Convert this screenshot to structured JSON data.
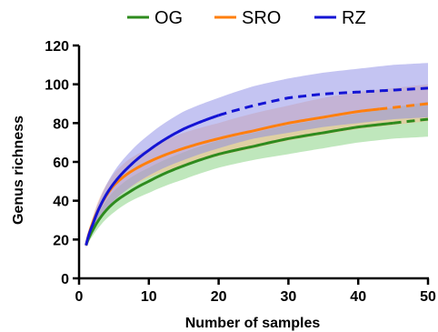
{
  "chart_data": {
    "type": "line",
    "xlabel": "Number of samples",
    "ylabel": "Genus richness",
    "xlim": [
      0,
      50
    ],
    "ylim": [
      0,
      120
    ],
    "xticks": [
      0,
      10,
      20,
      30,
      40,
      50
    ],
    "yticks": [
      0,
      20,
      40,
      60,
      80,
      100,
      120
    ],
    "grid": false,
    "legend_position": "top",
    "series": [
      {
        "name": "OG",
        "color": "#2e8b1e",
        "band_color": "#7fd07a",
        "x": [
          1,
          2,
          3,
          5,
          7,
          10,
          15,
          20,
          25,
          30,
          35,
          40,
          45,
          50
        ],
        "y": [
          17,
          25,
          31,
          39,
          44,
          50,
          58,
          64,
          68,
          72,
          75,
          78,
          80,
          82
        ],
        "lower": [
          16,
          22,
          27,
          34,
          39,
          44,
          51,
          57,
          61,
          64,
          67,
          70,
          72,
          73
        ],
        "upper": [
          18,
          28,
          35,
          45,
          51,
          57,
          65,
          71,
          75,
          79,
          82,
          85,
          88,
          91
        ],
        "observed_until": 45
      },
      {
        "name": "SRO",
        "color": "#ff7f0e",
        "band_color": "#ffb98a",
        "x": [
          1,
          2,
          3,
          5,
          7,
          10,
          15,
          20,
          25,
          30,
          35,
          40,
          45,
          50
        ],
        "y": [
          17,
          29,
          37,
          48,
          54,
          60,
          67,
          72,
          76,
          80,
          83,
          86,
          88,
          90
        ],
        "lower": [
          16,
          25,
          31,
          40,
          46,
          52,
          58,
          63,
          67,
          71,
          74,
          77,
          79,
          81
        ],
        "upper": [
          18,
          32,
          42,
          54,
          61,
          67,
          75,
          80,
          85,
          89,
          93,
          96,
          98,
          100
        ],
        "observed_until": 43
      },
      {
        "name": "RZ",
        "color": "#1414d4",
        "band_color": "#8a8ae6",
        "x": [
          1,
          2,
          3,
          5,
          7,
          10,
          15,
          20,
          25,
          30,
          35,
          40,
          45,
          50
        ],
        "y": [
          17,
          28,
          37,
          49,
          57,
          66,
          77,
          84,
          89,
          93,
          95,
          96,
          97,
          98
        ],
        "lower": [
          16,
          24,
          31,
          40,
          46,
          53,
          61,
          67,
          72,
          75,
          78,
          80,
          82,
          83
        ],
        "upper": [
          18,
          31,
          41,
          55,
          64,
          74,
          86,
          93,
          99,
          103,
          106,
          108,
          110,
          111
        ],
        "observed_until": 20
      }
    ]
  }
}
